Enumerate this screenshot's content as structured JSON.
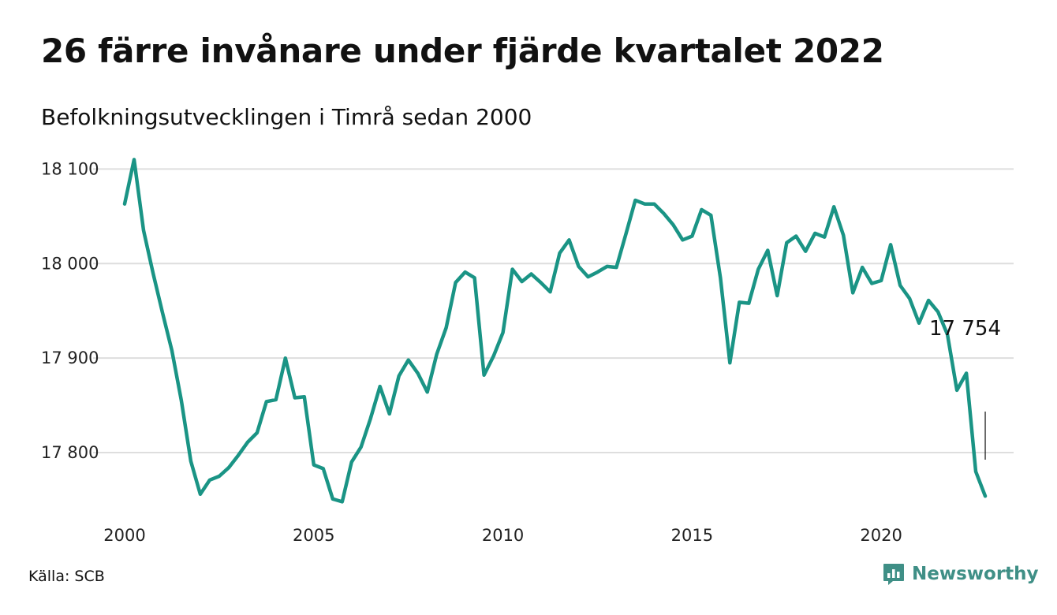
{
  "title": "26 färre invånare under fjärde kvartalet 2022",
  "subtitle": "Befolkningsutvecklingen i Timrå sedan 2000",
  "source": "Källa: SCB",
  "brand": {
    "name": "Newsworthy",
    "icon": "bar-chart-speech-bubble-icon",
    "color": "#3f8f86"
  },
  "chart_data": {
    "type": "line",
    "line_color": "#1a9485",
    "grid": true,
    "ylim": [
      17745,
      18112
    ],
    "xlim": [
      2000,
      2023.5
    ],
    "y_ticks": [
      {
        "value": 17800,
        "label": "17 800"
      },
      {
        "value": 17900,
        "label": "17 900"
      },
      {
        "value": 18000,
        "label": "18 000"
      },
      {
        "value": 18100,
        "label": "18 100"
      }
    ],
    "x_ticks": [
      {
        "value": 2000,
        "label": "2000"
      },
      {
        "value": 2005,
        "label": "2005"
      },
      {
        "value": 2010,
        "label": "2010"
      },
      {
        "value": 2015,
        "label": "2015"
      },
      {
        "value": 2020,
        "label": "2020"
      }
    ],
    "annotation": {
      "label": "17 754",
      "value": 17754
    },
    "series": [
      {
        "x": [
          2000.0,
          2000.25,
          2000.5,
          2000.75,
          2001.0,
          2001.25,
          2001.5,
          2001.75,
          2002.0,
          2002.25,
          2002.5,
          2002.75,
          2003.0,
          2003.25,
          2003.5,
          2003.75,
          2004.0,
          2004.25,
          2004.5,
          2004.75,
          2005.0,
          2005.25,
          2005.5,
          2005.75,
          2006.0,
          2006.25,
          2006.5,
          2006.75,
          2007.0,
          2007.25,
          2007.5,
          2007.75,
          2008.0,
          2008.25,
          2008.5,
          2008.75,
          2009.0,
          2009.25,
          2009.5,
          2009.75,
          2010.0,
          2010.25,
          2010.5,
          2010.75,
          2011.0,
          2011.25,
          2011.5,
          2011.75,
          2012.0,
          2012.25,
          2012.5,
          2012.75,
          2013.0,
          2013.25,
          2013.5,
          2013.75,
          2014.0,
          2014.25,
          2014.5,
          2014.75,
          2015.0,
          2015.25,
          2015.5,
          2015.75,
          2016.0,
          2016.25,
          2016.5,
          2016.75,
          2017.0,
          2017.25,
          2017.5,
          2017.75,
          2018.0,
          2018.25,
          2018.5,
          2018.75,
          2019.0,
          2019.25,
          2019.5,
          2019.75,
          2020.0,
          2020.25,
          2020.5,
          2020.75,
          2021.0,
          2021.25,
          2021.5,
          2021.75,
          2022.0,
          2022.25,
          2022.5,
          2022.75
        ],
        "values": [
          18063,
          18110,
          18035,
          17990,
          17948,
          17908,
          17855,
          17791,
          17756,
          17771,
          17775,
          17784,
          17797,
          17811,
          17821,
          17854,
          17856,
          17900,
          17858,
          17859,
          17787,
          17783,
          17751,
          17748,
          17790,
          17806,
          17836,
          17870,
          17841,
          17881,
          17898,
          17884,
          17864,
          17904,
          17932,
          17980,
          17991,
          17985,
          17882,
          17902,
          17927,
          17994,
          17981,
          17989,
          17980,
          17970,
          18011,
          18025,
          17997,
          17986,
          17991,
          17997,
          17996,
          18031,
          18067,
          18063,
          18063,
          18053,
          18041,
          18025,
          18029,
          18057,
          18051,
          17985,
          17895,
          17959,
          17958,
          17994,
          18014,
          17966,
          18022,
          18029,
          18013,
          18032,
          18028,
          18060,
          18030,
          17969,
          17996,
          17979,
          17982,
          18020,
          17977,
          17963,
          17937,
          17961,
          17949,
          17925,
          17866,
          17884,
          17780,
          17754
        ]
      }
    ]
  }
}
